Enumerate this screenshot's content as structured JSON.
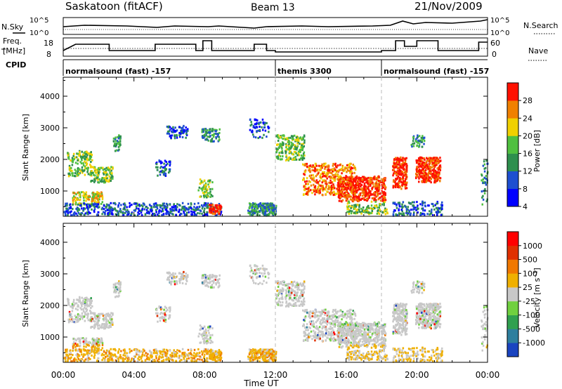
{
  "header": {
    "station": "Saskatoon (fitACF)",
    "beam": "Beam 13",
    "date": "21/Nov/2009"
  },
  "top_panels": {
    "nsky_label": "N.Sky",
    "nsky_ticks": [
      "10^5",
      "10^0"
    ],
    "nsearch_label": "N.Search",
    "nsearch_ticks": [
      "10^5",
      "10^0"
    ],
    "freq_label_1": "Freq.",
    "freq_label_2": "[MHz]",
    "freq_ticks": [
      "18",
      "8"
    ],
    "nave_label": "Nave",
    "nave_ticks": [
      "60",
      "0"
    ],
    "cpid_label": "CPID",
    "cpid_segments": [
      {
        "label": "normalsound (fast) -157",
        "start_hour": 0
      },
      {
        "label": "themis 3300",
        "start_hour": 12
      },
      {
        "label": "normalsound (fast) -157",
        "start_hour": 18
      }
    ]
  },
  "chart_data": [
    {
      "type": "heatmap",
      "panel": "power",
      "ylabel": "Slant Range [km]",
      "yticks": [
        "4000",
        "3000",
        "2000",
        "1000"
      ],
      "ylim": [
        200,
        4600
      ],
      "xlim": [
        0,
        24
      ],
      "colorbar_label": "Power [dB]",
      "colorbar_ticks": [
        "28",
        "24",
        "20",
        "16",
        "12",
        "8",
        "4"
      ],
      "colors": [
        "#0000ff",
        "#1e4fd0",
        "#2e8f4e",
        "#50c040",
        "#f0d000",
        "#f08000",
        "#ff1000"
      ]
    },
    {
      "type": "heatmap",
      "panel": "velocity",
      "ylabel": "Slant Range [km]",
      "yticks": [
        "4000",
        "3000",
        "2000",
        "1000"
      ],
      "ylim": [
        200,
        4600
      ],
      "xlim": [
        0,
        24
      ],
      "xticks": [
        "00:00",
        "04:00",
        "08:00",
        "12:00",
        "16:00",
        "20:00",
        "00:00"
      ],
      "xlabel": "Time UT",
      "colorbar_label": "Velocity [m s⁻¹]",
      "colorbar_ticks": [
        "1000",
        "500",
        "100",
        "25",
        "-25",
        "-100",
        "-500",
        "-1000"
      ],
      "colors": [
        "#1a44c0",
        "#2e7f9e",
        "#30a050",
        "#70d040",
        "#c8c8c8",
        "#f0b000",
        "#f07800",
        "#e03000",
        "#ff0000"
      ]
    }
  ]
}
